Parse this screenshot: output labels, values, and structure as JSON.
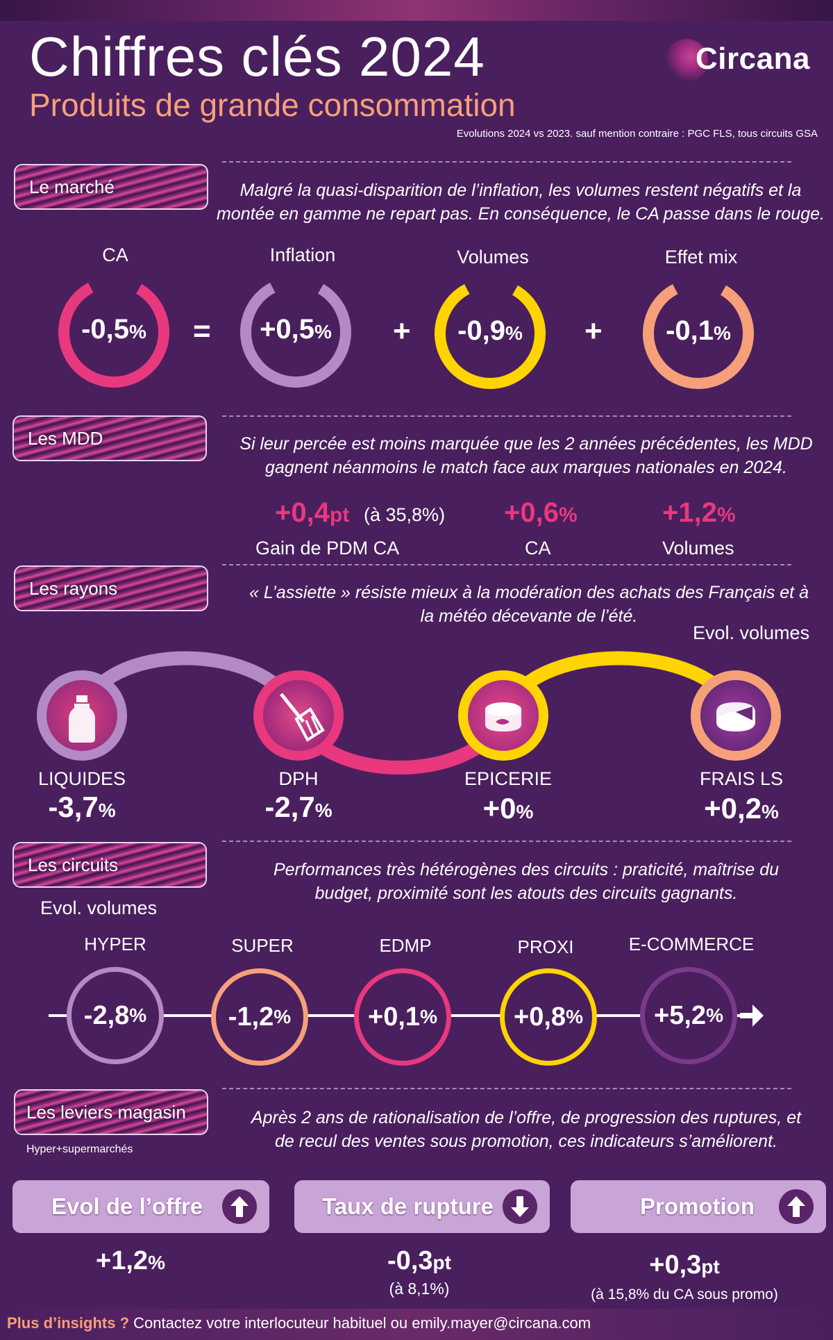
{
  "header": {
    "title": "Chiffres clés 2024",
    "subtitle": "Produits de grande consommation",
    "note": "Evolutions 2024 vs 2023. sauf mention contraire : PGC FLS, tous circuits GSA",
    "logo": "Circana"
  },
  "marche": {
    "label": "Le marché",
    "intro_line1": "Malgré la quasi-disparition de l’inflation, les volumes restent négatifs et la",
    "intro_line2": "montée en gamme ne repart pas. En conséquence, le CA passe dans le rouge.",
    "items": [
      {
        "label": "CA",
        "num": "-0,5",
        "unit": "%",
        "color": "#e8387e"
      },
      {
        "label": "Inflation",
        "num": "+0,5",
        "unit": "%",
        "color": "#b48ac4"
      },
      {
        "label": "Volumes",
        "num": "-0,9",
        "unit": "%",
        "color": "#ffd400"
      },
      {
        "label": "Effet mix",
        "num": "-0,1",
        "unit": "%",
        "color": "#f6a07a"
      }
    ],
    "op_eq": "=",
    "op_plus": "+"
  },
  "mdd": {
    "label": "Les MDD",
    "intro_line1": "Si leur percée est moins marquée que les 2 années précédentes, les MDD",
    "intro_line2": "gagnent néanmoins le match face aux marques nationales en 2024.",
    "pdm_num": "+0,4",
    "pdm_unit": "pt",
    "pdm_note": "(à 35,8%)",
    "pdm_label": "Gain de PDM CA",
    "ca_num": "+0,6",
    "ca_unit": "%",
    "ca_label": "CA",
    "vol_num": "+1,2",
    "vol_unit": "%",
    "vol_label": "Volumes"
  },
  "rayons": {
    "label": "Les rayons",
    "intro_line1": "« L’assiette » résiste mieux à la modération des achats des Français et à",
    "intro_line2": "la météo décevante de l’été.",
    "axis_note": "Evol. volumes",
    "items": [
      {
        "name": "LIQUIDES",
        "num": "-3,7",
        "unit": "%",
        "icon": "bottle-icon",
        "ring": "#b48ac4"
      },
      {
        "name": "DPH",
        "num": "-2,7",
        "unit": "%",
        "icon": "broom-icon",
        "ring": "#e8387e"
      },
      {
        "name": "EPICERIE",
        "num": "+0",
        "unit": "%",
        "icon": "tin-can-icon",
        "ring": "#ffd400"
      },
      {
        "name": "FRAIS LS",
        "num": "+0,2",
        "unit": "%",
        "icon": "cheese-icon",
        "ring": "#f6a07a"
      }
    ]
  },
  "circuits": {
    "label": "Les circuits",
    "intro_line1": "Performances très hétérogènes des circuits : praticité, maîtrise du",
    "intro_line2": "budget, proximité sont les atouts des circuits gagnants.",
    "axis_note": "Evol. volumes",
    "items": [
      {
        "name": "HYPER",
        "num": "-2,8",
        "unit": "%",
        "color": "#b48ac4"
      },
      {
        "name": "SUPER",
        "num": "-1,2",
        "unit": "%",
        "color": "#f6a07a"
      },
      {
        "name": "EDMP",
        "num": "+0,1",
        "unit": "%",
        "color": "#e8387e"
      },
      {
        "name": "PROXI",
        "num": "+0,8",
        "unit": "%",
        "color": "#ffd400"
      },
      {
        "name": "E-COMMERCE",
        "num": "+5,2",
        "unit": "%",
        "color": "#7a3a8a"
      }
    ]
  },
  "leviers": {
    "label": "Les leviers magasin",
    "scope": "Hyper+supermarchés",
    "intro_line1": "Après 2 ans de rationalisation de l’offre, de progression des ruptures, et",
    "intro_line2": "de recul des ventes sous promotion, ces indicateurs s’améliorent.",
    "items": [
      {
        "label": "Evol de l’offre",
        "num": "+1,2",
        "unit": "%",
        "sub": "",
        "icon": "arrow-up-icon"
      },
      {
        "label": "Taux de rupture",
        "num": "-0,3",
        "unit": "pt",
        "sub": "(à 8,1%)",
        "icon": "arrow-down-icon"
      },
      {
        "label": "Promotion",
        "num": "+0,3",
        "unit": "pt",
        "sub": "(à 15,8% du CA sous promo)",
        "icon": "arrow-up-icon"
      }
    ]
  },
  "footer": {
    "highlight": "Plus d’insights ?",
    "text": " Contactez votre interlocuteur habituel  ou emily.mayer@circana.com"
  }
}
